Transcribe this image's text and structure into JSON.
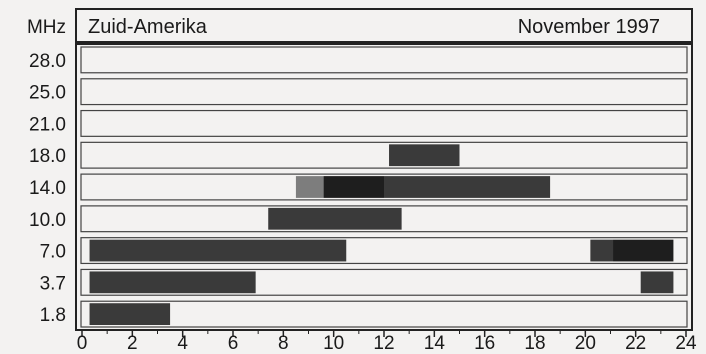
{
  "chart_data": {
    "type": "bar",
    "header_left": "Zuid-Amerika",
    "header_right": "November 1997",
    "ylabel": "MHz",
    "xlabel": "",
    "xlim": [
      0,
      24
    ],
    "x_ticks": [
      "0",
      "2",
      "4",
      "6",
      "8",
      "10",
      "12",
      "14",
      "16",
      "18",
      "20",
      "22",
      "24"
    ],
    "categories": [
      "28.0",
      "25.0",
      "21.0",
      "18.0",
      "14.0",
      "10.0",
      "7.0",
      "3.7",
      "1.8"
    ],
    "grid": "horizontal rows",
    "colors": {
      "background": "#f3f2f1",
      "bar": "#3a3a3a",
      "bar_dark": "#1e1e1e",
      "bar_light": "#7d7d7d",
      "frame": "#222222"
    },
    "bars": [
      {
        "band": "18.0",
        "start": 12.2,
        "end": 15.0,
        "shade": "dark"
      },
      {
        "band": "14.0",
        "start": 8.5,
        "end": 9.6,
        "shade": "light"
      },
      {
        "band": "14.0",
        "start": 9.6,
        "end": 12.0,
        "shade": "darkest"
      },
      {
        "band": "14.0",
        "start": 12.0,
        "end": 18.6,
        "shade": "dark"
      },
      {
        "band": "10.0",
        "start": 7.4,
        "end": 12.7,
        "shade": "dark"
      },
      {
        "band": "7.0",
        "start": 0.3,
        "end": 10.5,
        "shade": "dark"
      },
      {
        "band": "7.0",
        "start": 20.2,
        "end": 21.1,
        "shade": "dark"
      },
      {
        "band": "7.0",
        "start": 21.1,
        "end": 23.5,
        "shade": "darkest"
      },
      {
        "band": "3.7",
        "start": 0.3,
        "end": 6.9,
        "shade": "dark"
      },
      {
        "band": "3.7",
        "start": 22.2,
        "end": 23.5,
        "shade": "dark"
      },
      {
        "band": "1.8",
        "start": 0.3,
        "end": 3.5,
        "shade": "dark"
      }
    ]
  }
}
